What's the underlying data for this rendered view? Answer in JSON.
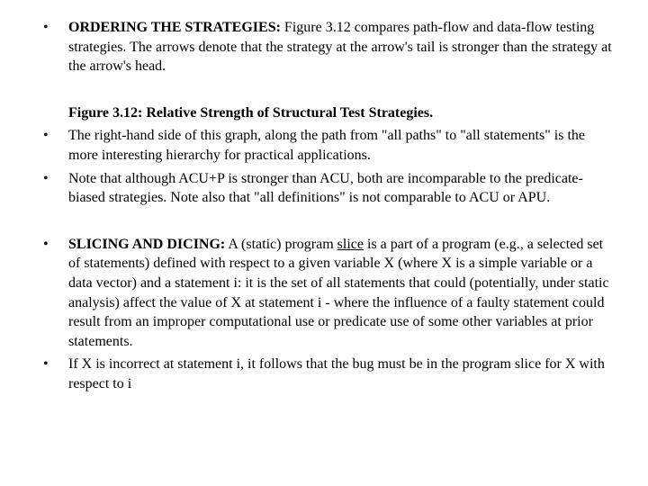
{
  "bullets": [
    {
      "heading": "ORDERING THE STRATEGIES:",
      "body": " Figure 3.12 compares path-flow and data-flow testing strategies. The arrows denote that the strategy at the arrow's tail is stronger than the strategy at the arrow's head."
    },
    {
      "caption": "Figure 3.12: Relative Strength of Structural Test Strategies."
    },
    {
      "body": "The right-hand side of this graph, along the path from \"all paths\" to \"all statements\" is the more interesting hierarchy for practical applications."
    },
    {
      "body": "Note that although ACU+P is stronger than ACU, both are incomparable to the predicate-biased strategies. Note also that \"all definitions\" is not comparable to ACU or APU."
    },
    {
      "heading": "SLICING AND DICING:",
      "lead": " A (static) program ",
      "underlined": "slice",
      "body": " is a part of a program (e.g., a selected set of statements) defined with respect to a given variable X (where X is a simple variable or a data vector) and a statement i: it is the set of all statements that could (potentially, under static analysis) affect the value of X at statement i - where the influence of a faulty statement could result from an improper computational use or predicate use of some other variables at prior statements."
    },
    {
      "body": "If X is incorrect at statement i, it follows that the bug must be in the program slice for X with respect to i"
    }
  ],
  "styling": {
    "font_family": "Times New Roman",
    "font_size_pt": 12,
    "text_color": "#000000",
    "background_color": "#ffffff",
    "bullet_char": "•"
  }
}
